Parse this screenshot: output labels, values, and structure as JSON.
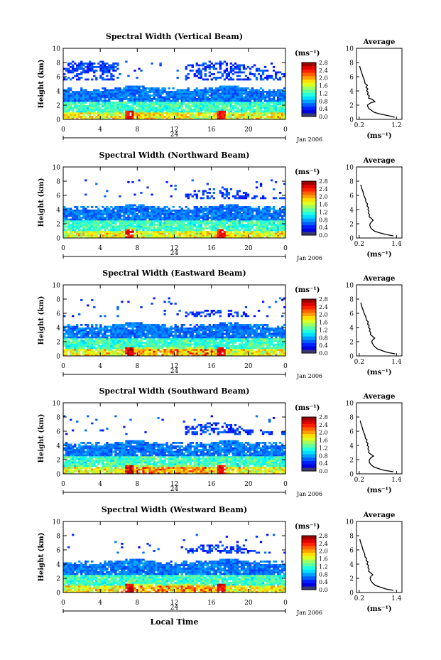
{
  "figure": {
    "xlabel_bottom": "Local Time",
    "cbar_unit": "(ms⁻¹)",
    "avg_title": "Average",
    "avg_xlabel": "(ms⁻¹)",
    "date_label": "Jan 2006",
    "day_label": "24"
  },
  "chart_data": [
    {
      "type": "heatmap",
      "title": "Spectral Width (Vertical Beam)",
      "ylabel": "Height (km)",
      "x_ticks": [
        "0",
        "4",
        "8",
        "12",
        "16",
        "20",
        "0"
      ],
      "y_ticks": [
        "0",
        "2",
        "4",
        "6",
        "8",
        "10"
      ],
      "xlim": [
        0,
        24
      ],
      "ylim": [
        0,
        10
      ],
      "colorbar": {
        "ticks": [
          "0.0",
          "0.4",
          "0.8",
          "1.2",
          "1.6",
          "2.0",
          "2.4",
          "2.8"
        ],
        "range": [
          0,
          2.8
        ]
      },
      "average_profile": {
        "x_ticks": [
          "0.2",
          "1.2"
        ],
        "xlim": [
          0.2,
          1.2
        ],
        "ylim": [
          0,
          10
        ],
        "y_ticks": [
          "0",
          "2",
          "4",
          "6",
          "8",
          "10"
        ],
        "height": [
          0.3,
          0.5,
          0.8,
          1.0,
          1.3,
          1.5,
          1.8,
          2.0,
          2.3,
          2.5,
          2.8,
          3.0,
          3.3,
          3.5,
          3.8,
          4.0,
          4.3,
          4.5,
          4.8,
          5.0,
          5.5,
          6.0,
          6.5,
          7.0,
          7.5
        ],
        "value": [
          1.15,
          1.0,
          0.72,
          0.6,
          0.52,
          0.46,
          0.43,
          0.42,
          0.5,
          0.62,
          0.55,
          0.45,
          0.47,
          0.42,
          0.44,
          0.4,
          0.43,
          0.38,
          0.42,
          0.36,
          0.34,
          0.3,
          0.27,
          0.24,
          0.21
        ]
      }
    },
    {
      "type": "heatmap",
      "title": "Spectral Width (Northward Beam)",
      "ylabel": "Height (km)",
      "x_ticks": [
        "0",
        "4",
        "8",
        "12",
        "16",
        "20",
        "0"
      ],
      "y_ticks": [
        "0",
        "2",
        "4",
        "6",
        "8",
        "10"
      ],
      "xlim": [
        0,
        24
      ],
      "ylim": [
        0,
        10
      ],
      "colorbar": {
        "ticks": [
          "0.0",
          "0.4",
          "0.8",
          "1.2",
          "1.6",
          "2.0",
          "2.4",
          "2.8"
        ],
        "range": [
          0,
          2.8
        ]
      },
      "average_profile": {
        "x_ticks": [
          "0.2",
          "1.4"
        ],
        "xlim": [
          0.2,
          1.4
        ],
        "ylim": [
          0,
          10
        ],
        "y_ticks": [
          "0",
          "2",
          "4",
          "6",
          "8",
          "10"
        ],
        "height": [
          0.3,
          0.5,
          0.8,
          1.0,
          1.3,
          1.5,
          1.8,
          2.0,
          2.3,
          2.5,
          2.8,
          3.0,
          3.3,
          3.5,
          3.8,
          4.0,
          4.3,
          4.5,
          4.8,
          5.0,
          5.5,
          6.0,
          6.5,
          7.0,
          7.5
        ],
        "value": [
          1.3,
          1.05,
          0.8,
          0.68,
          0.6,
          0.56,
          0.54,
          0.55,
          0.6,
          0.65,
          0.58,
          0.52,
          0.53,
          0.5,
          0.51,
          0.48,
          0.5,
          0.45,
          0.47,
          0.42,
          0.4,
          0.35,
          0.32,
          0.28,
          0.25
        ]
      }
    },
    {
      "type": "heatmap",
      "title": "Spectral Width (Eastward Beam)",
      "ylabel": "Height (km)",
      "x_ticks": [
        "0",
        "4",
        "8",
        "12",
        "16",
        "20",
        "0"
      ],
      "y_ticks": [
        "0",
        "2",
        "4",
        "6",
        "8",
        "10"
      ],
      "xlim": [
        0,
        24
      ],
      "ylim": [
        0,
        10
      ],
      "colorbar": {
        "ticks": [
          "0.0",
          "0.4",
          "0.8",
          "1.2",
          "1.6",
          "2.0",
          "2.4",
          "2.8"
        ],
        "range": [
          0,
          2.8
        ]
      },
      "average_profile": {
        "x_ticks": [
          "0.2",
          "1.4"
        ],
        "xlim": [
          0.2,
          1.4
        ],
        "ylim": [
          0,
          10
        ],
        "y_ticks": [
          "0",
          "2",
          "4",
          "6",
          "8",
          "10"
        ],
        "height": [
          0.3,
          0.5,
          0.8,
          1.0,
          1.3,
          1.5,
          1.8,
          2.0,
          2.3,
          2.5,
          2.8,
          3.0,
          3.3,
          3.5,
          3.8,
          4.0,
          4.3,
          4.5,
          4.8,
          5.0,
          5.5,
          6.0,
          6.5,
          7.0,
          7.5
        ],
        "value": [
          1.35,
          1.1,
          0.9,
          0.78,
          0.7,
          0.66,
          0.62,
          0.6,
          0.64,
          0.7,
          0.62,
          0.56,
          0.57,
          0.53,
          0.55,
          0.5,
          0.52,
          0.47,
          0.49,
          0.44,
          0.41,
          0.36,
          0.32,
          0.28,
          0.25
        ]
      }
    },
    {
      "type": "heatmap",
      "title": "Spectral Width (Southward Beam)",
      "ylabel": "Height (km)",
      "x_ticks": [
        "0",
        "4",
        "8",
        "12",
        "16",
        "20",
        "0"
      ],
      "y_ticks": [
        "0",
        "2",
        "4",
        "6",
        "8",
        "10"
      ],
      "xlim": [
        0,
        24
      ],
      "ylim": [
        0,
        10
      ],
      "colorbar": {
        "ticks": [
          "0.0",
          "0.4",
          "0.8",
          "1.2",
          "1.6",
          "2.0",
          "2.4",
          "2.8"
        ],
        "range": [
          0,
          2.8
        ]
      },
      "average_profile": {
        "x_ticks": [
          "0.2",
          "1.4"
        ],
        "xlim": [
          0.2,
          1.4
        ],
        "ylim": [
          0,
          10
        ],
        "y_ticks": [
          "0",
          "2",
          "4",
          "6",
          "8",
          "10"
        ],
        "height": [
          0.3,
          0.5,
          0.8,
          1.0,
          1.3,
          1.5,
          1.8,
          2.0,
          2.3,
          2.5,
          2.8,
          3.0,
          3.3,
          3.5,
          3.8,
          4.0,
          4.3,
          4.5,
          4.8,
          5.0,
          5.5,
          6.0,
          6.5,
          7.0,
          7.5
        ],
        "value": [
          1.3,
          1.0,
          0.78,
          0.66,
          0.58,
          0.54,
          0.52,
          0.53,
          0.58,
          0.66,
          0.56,
          0.5,
          0.52,
          0.48,
          0.5,
          0.46,
          0.48,
          0.43,
          0.45,
          0.4,
          0.38,
          0.33,
          0.3,
          0.26,
          0.23
        ]
      }
    },
    {
      "type": "heatmap",
      "title": "Spectral Width (Westward Beam)",
      "ylabel": "Height (km)",
      "x_ticks": [
        "0",
        "4",
        "8",
        "12",
        "16",
        "20",
        "0"
      ],
      "y_ticks": [
        "0",
        "2",
        "4",
        "6",
        "8",
        "10"
      ],
      "xlim": [
        0,
        24
      ],
      "ylim": [
        0,
        10
      ],
      "colorbar": {
        "ticks": [
          "0.0",
          "0.4",
          "0.8",
          "1.2",
          "1.6",
          "2.0",
          "2.4",
          "2.8"
        ],
        "range": [
          0,
          2.8
        ]
      },
      "average_profile": {
        "x_ticks": [
          "0.2",
          "1.4"
        ],
        "xlim": [
          0.2,
          1.4
        ],
        "ylim": [
          0,
          10
        ],
        "y_ticks": [
          "0",
          "2",
          "4",
          "6",
          "8",
          "10"
        ],
        "height": [
          0.3,
          0.5,
          0.8,
          1.0,
          1.3,
          1.5,
          1.8,
          2.0,
          2.3,
          2.5,
          2.8,
          3.0,
          3.3,
          3.5,
          3.8,
          4.0,
          4.3,
          4.5,
          4.8,
          5.0,
          5.5,
          6.0,
          6.5,
          7.0,
          7.5
        ],
        "value": [
          1.3,
          1.05,
          0.85,
          0.72,
          0.64,
          0.6,
          0.56,
          0.55,
          0.58,
          0.64,
          0.56,
          0.5,
          0.52,
          0.48,
          0.5,
          0.45,
          0.48,
          0.42,
          0.44,
          0.39,
          0.37,
          0.32,
          0.29,
          0.25,
          0.22
        ]
      }
    }
  ]
}
